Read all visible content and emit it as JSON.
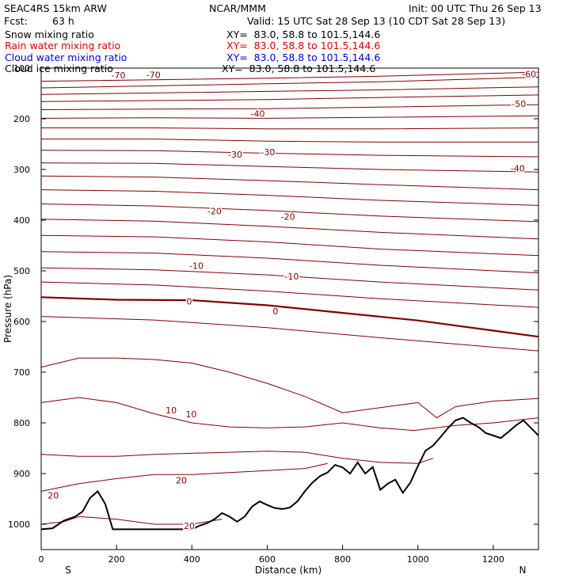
{
  "header": {
    "model": "SEAC4RS 15km ARW",
    "center": "NCAR/MMM",
    "init": "Init: 00 UTC Thu 26 Sep 13",
    "fcst_label": "Fcst:",
    "fcst_value": "63 h",
    "valid": "Valid: 15 UTC Sat 28 Sep 13 (10 CDT Sat 28 Sep 13)"
  },
  "legend": [
    {
      "label": "Snow mixing ratio",
      "xy": "XY=  83.0, 58.8 to 101.5,144.6",
      "color": "#000000"
    },
    {
      "label": "Rain water mixing ratio",
      "xy": "XY=  83.0, 58.8 to 101.5,144.6",
      "color": "#dd0000"
    },
    {
      "label": "Cloud water mixing ratio",
      "xy": "XY=  83.0, 58.8 to 101.5,144.6",
      "color": "#0000cc"
    },
    {
      "label": "Cloud ice mixing ratio",
      "xy": "XY=  83.0, 58.8 to 101.5,144.6",
      "color": "#000000"
    }
  ],
  "chart_data": {
    "type": "line",
    "title": "",
    "xlabel": "Distance (km)",
    "ylabel": "Pressure (hPa)",
    "xlim": [
      0,
      1320
    ],
    "ylim": [
      1050,
      100
    ],
    "y_scale": "linear-inverted",
    "x_ticks": [
      0,
      200,
      400,
      600,
      800,
      1000,
      1200
    ],
    "y_ticks": [
      200,
      300,
      400,
      500,
      600,
      700,
      800,
      900,
      1000
    ],
    "y_tick_label_top": "100",
    "left_end_label": "S",
    "right_end_label": "N",
    "isotherm_color": "#800000",
    "terrain_color": "#000000",
    "isotherms": [
      {
        "x": [
          0,
          300,
          600,
          900,
          1320
        ],
        "y": [
          126,
          123,
          120,
          116,
          108
        ]
      },
      {
        "x": [
          0,
          300,
          600,
          900,
          1320
        ],
        "y": [
          139,
          135,
          131,
          127,
          118
        ]
      },
      {
        "x": [
          0,
          300,
          600,
          900,
          1320
        ],
        "y": [
          152,
          149,
          146,
          143,
          137
        ]
      },
      {
        "x": [
          0,
          300,
          600,
          900,
          1320
        ],
        "y": [
          166,
          164,
          162,
          158,
          153
        ]
      },
      {
        "x": [
          0,
          300,
          600,
          900,
          1320
        ],
        "y": [
          182,
          181,
          180,
          177,
          172
        ]
      },
      {
        "x": [
          0,
          300,
          600,
          900,
          1320
        ],
        "y": [
          199,
          198,
          199,
          197,
          194
        ]
      },
      {
        "x": [
          0,
          300,
          600,
          900,
          1320
        ],
        "y": [
          218,
          218,
          220,
          220,
          218
        ]
      },
      {
        "x": [
          0,
          300,
          600,
          900,
          1320
        ],
        "y": [
          240,
          240,
          244,
          246,
          246
        ]
      },
      {
        "x": [
          0,
          300,
          600,
          900,
          1320
        ],
        "y": [
          262,
          263,
          268,
          272,
          275
        ]
      },
      {
        "x": [
          0,
          300,
          600,
          900,
          1320
        ],
        "y": [
          287,
          288,
          294,
          300,
          305
        ]
      },
      {
        "x": [
          0,
          300,
          600,
          900,
          1320
        ],
        "y": [
          313,
          315,
          322,
          330,
          340
        ]
      },
      {
        "x": [
          0,
          300,
          600,
          900,
          1320
        ],
        "y": [
          340,
          343,
          351,
          361,
          371
        ]
      },
      {
        "x": [
          0,
          300,
          600,
          900,
          1320
        ],
        "y": [
          368,
          372,
          381,
          392,
          403
        ]
      },
      {
        "x": [
          0,
          300,
          600,
          900,
          1320
        ],
        "y": [
          398,
          402,
          412,
          424,
          437
        ]
      },
      {
        "x": [
          0,
          300,
          600,
          900,
          1320
        ],
        "y": [
          430,
          433,
          443,
          457,
          470
        ]
      },
      {
        "x": [
          0,
          300,
          600,
          900,
          1320
        ],
        "y": [
          462,
          465,
          475,
          489,
          504
        ]
      },
      {
        "x": [
          0,
          300,
          600,
          900,
          1320
        ],
        "y": [
          494,
          498,
          508,
          522,
          538
        ]
      },
      {
        "x": [
          0,
          300,
          600,
          900,
          1320
        ],
        "y": [
          522,
          528,
          540,
          555,
          572
        ]
      },
      {
        "x": [
          0,
          200,
          400,
          600,
          800,
          1000,
          1200,
          1320
        ],
        "y": [
          552,
          557,
          558,
          568,
          583,
          598,
          618,
          630
        ],
        "bold": true
      },
      {
        "x": [
          0,
          300,
          600,
          900,
          1320
        ],
        "y": [
          590,
          597,
          612,
          632,
          658
        ]
      },
      {
        "x": [
          0,
          100,
          200,
          300,
          400,
          500,
          600,
          700,
          800,
          900,
          1000,
          1050,
          1100,
          1200,
          1320
        ],
        "y": [
          690,
          672,
          672,
          675,
          682,
          700,
          722,
          748,
          780,
          770,
          760,
          790,
          768,
          757,
          752
        ]
      },
      {
        "x": [
          0,
          100,
          200,
          300,
          400,
          500,
          600,
          700,
          800,
          900,
          990,
          1100,
          1200,
          1320
        ],
        "y": [
          760,
          750,
          760,
          782,
          800,
          808,
          810,
          808,
          800,
          810,
          815,
          805,
          800,
          790
        ]
      },
      {
        "x": [
          0,
          100,
          200,
          300,
          400,
          500,
          600,
          700,
          800,
          900,
          1000,
          1040
        ],
        "y": [
          862,
          866,
          866,
          862,
          860,
          858,
          856,
          858,
          870,
          878,
          880,
          870
        ]
      },
      {
        "x": [
          0,
          100,
          200,
          300,
          400,
          500,
          600,
          700,
          760
        ],
        "y": [
          935,
          920,
          910,
          902,
          902,
          898,
          894,
          890,
          880
        ]
      },
      {
        "x": [
          0,
          60,
          100,
          200,
          300,
          400,
          480
        ],
        "y": [
          1000,
          995,
          985,
          990,
          1000,
          1000,
          990
        ]
      }
    ],
    "isotherm_labels": [
      {
        "text": "-70",
        "x": 205,
        "y": 114
      },
      {
        "text": "-70",
        "x": 298,
        "y": 113
      },
      {
        "text": "-60",
        "x": 1295,
        "y": 112
      },
      {
        "text": "-50",
        "x": 1268,
        "y": 170
      },
      {
        "text": "-40",
        "x": 575,
        "y": 190
      },
      {
        "text": "-40",
        "x": 1265,
        "y": 298
      },
      {
        "text": "-30",
        "x": 515,
        "y": 270
      },
      {
        "text": "-30",
        "x": 602,
        "y": 266
      },
      {
        "text": "-20",
        "x": 460,
        "y": 382
      },
      {
        "text": "-20",
        "x": 655,
        "y": 393
      },
      {
        "text": "-10",
        "x": 412,
        "y": 490
      },
      {
        "text": "-10",
        "x": 665,
        "y": 511
      },
      {
        "text": "0",
        "x": 393,
        "y": 560
      },
      {
        "text": "0",
        "x": 622,
        "y": 580
      },
      {
        "text": "10",
        "x": 345,
        "y": 775
      },
      {
        "text": "10",
        "x": 398,
        "y": 783
      },
      {
        "text": "20",
        "x": 372,
        "y": 913
      },
      {
        "text": "20",
        "x": 32,
        "y": 943
      },
      {
        "text": "20",
        "x": 393,
        "y": 1003
      }
    ],
    "terrain": {
      "x": [
        0,
        30,
        60,
        90,
        110,
        130,
        150,
        170,
        190,
        220,
        300,
        400,
        420,
        440,
        460,
        480,
        500,
        520,
        540,
        560,
        580,
        600,
        620,
        640,
        660,
        680,
        700,
        720,
        740,
        760,
        780,
        800,
        820,
        840,
        860,
        880,
        900,
        920,
        940,
        960,
        980,
        1000,
        1020,
        1040,
        1060,
        1080,
        1100,
        1120,
        1140,
        1160,
        1180,
        1200,
        1220,
        1240,
        1260,
        1280,
        1300,
        1320
      ],
      "y": [
        1010,
        1008,
        993,
        985,
        975,
        948,
        935,
        960,
        1010,
        1010,
        1010,
        1010,
        1003,
        998,
        990,
        978,
        985,
        995,
        985,
        965,
        955,
        962,
        968,
        970,
        967,
        955,
        935,
        918,
        905,
        898,
        883,
        888,
        900,
        878,
        900,
        887,
        932,
        920,
        912,
        938,
        918,
        885,
        855,
        845,
        828,
        810,
        795,
        790,
        800,
        808,
        820,
        825,
        830,
        818,
        805,
        795,
        810,
        825
      ]
    }
  }
}
